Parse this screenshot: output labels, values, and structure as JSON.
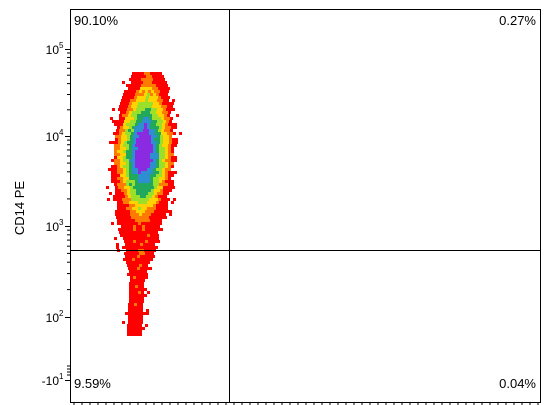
{
  "chart_data": {
    "type": "scatter",
    "subtype": "flow-cytometry density dot plot",
    "title": "",
    "xlabel": "",
    "ylabel": "CD14 PE",
    "y_scale": "log",
    "y_ticks": [
      {
        "base": "10",
        "exp": "5",
        "value": 100000
      },
      {
        "base": "10",
        "exp": "4",
        "value": 10000
      },
      {
        "base": "10",
        "exp": "3",
        "value": 1000
      },
      {
        "base": "10",
        "exp": "2",
        "value": 100
      },
      {
        "base": "-10",
        "exp": "1",
        "value": -10
      }
    ],
    "y_gate": 550,
    "quadrants": {
      "upper_left": "90.10%",
      "upper_right": "0.27%",
      "lower_left": "9.59%",
      "lower_right": "0.04%"
    },
    "density_colors": [
      "#ff0000",
      "#ff7a00",
      "#ffd200",
      "#9adf2a",
      "#21a85c",
      "#2d8fd0",
      "#8a2be2"
    ],
    "grid": false,
    "legend": "none"
  }
}
